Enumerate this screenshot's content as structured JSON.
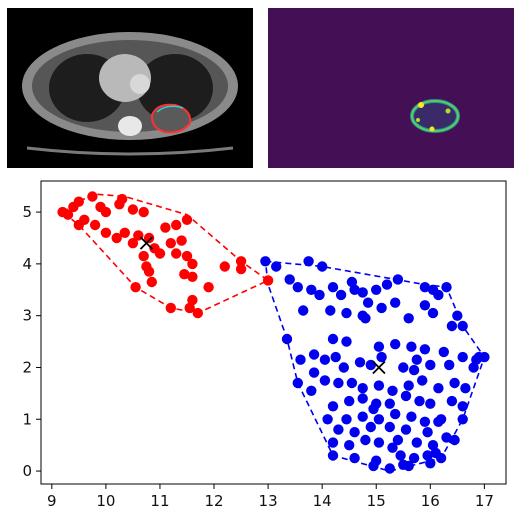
{
  "figure": {
    "panels": [
      {
        "name": "ct-scan-image",
        "kind": "grayscale CT slice with red and cyan tumor outlines"
      },
      {
        "name": "segmentation-heatmap",
        "kind": "viridis probability map with a bright ring"
      }
    ],
    "colors": {
      "red_cluster": "#ff0000",
      "blue_cluster": "#0000ee",
      "centroid": "#000000",
      "heatmap_background": "#440f55",
      "ct_red_outline": "#ff3030",
      "ct_cyan_outline": "#30d0d0"
    }
  },
  "chart_data": {
    "type": "scatter",
    "title": "",
    "xlabel": "",
    "ylabel": "",
    "xlim": [
      8.8,
      17.4
    ],
    "ylim": [
      -0.25,
      5.6
    ],
    "xticks": [
      9,
      10,
      11,
      12,
      13,
      14,
      15,
      16,
      17
    ],
    "yticks": [
      0,
      1,
      2,
      3,
      4,
      5
    ],
    "grid": false,
    "series": [
      {
        "color": "#ff0000",
        "points": [
          [
            9.2,
            5.0
          ],
          [
            9.3,
            4.95
          ],
          [
            9.4,
            5.1
          ],
          [
            9.5,
            5.2
          ],
          [
            9.6,
            4.85
          ],
          [
            9.75,
            5.3
          ],
          [
            9.9,
            5.1
          ],
          [
            10.0,
            5.0
          ],
          [
            10.25,
            5.15
          ],
          [
            10.3,
            5.25
          ],
          [
            10.5,
            5.05
          ],
          [
            10.7,
            5.0
          ],
          [
            9.5,
            4.75
          ],
          [
            9.8,
            4.75
          ],
          [
            10.0,
            4.6
          ],
          [
            10.2,
            4.5
          ],
          [
            10.35,
            4.6
          ],
          [
            10.6,
            4.55
          ],
          [
            10.8,
            4.5
          ],
          [
            11.1,
            4.7
          ],
          [
            11.3,
            4.75
          ],
          [
            11.5,
            4.85
          ],
          [
            10.5,
            4.4
          ],
          [
            10.9,
            4.3
          ],
          [
            11.2,
            4.4
          ],
          [
            11.4,
            4.45
          ],
          [
            10.7,
            4.15
          ],
          [
            11.0,
            4.2
          ],
          [
            11.3,
            4.2
          ],
          [
            11.5,
            4.15
          ],
          [
            11.6,
            4.0
          ],
          [
            10.8,
            3.85
          ],
          [
            11.45,
            3.8
          ],
          [
            11.6,
            3.75
          ],
          [
            12.2,
            3.95
          ],
          [
            12.5,
            4.05
          ],
          [
            12.5,
            3.9
          ],
          [
            10.85,
            3.65
          ],
          [
            10.55,
            3.55
          ],
          [
            11.9,
            3.55
          ],
          [
            13.0,
            3.68
          ],
          [
            11.6,
            3.3
          ],
          [
            11.55,
            3.15
          ],
          [
            11.2,
            3.15
          ],
          [
            11.7,
            3.05
          ],
          [
            10.75,
            3.95
          ]
        ],
        "hull": [
          [
            9.2,
            5.0
          ],
          [
            9.75,
            5.35
          ],
          [
            10.35,
            5.3
          ],
          [
            11.5,
            4.95
          ],
          [
            12.5,
            4.05
          ],
          [
            13.0,
            3.68
          ],
          [
            11.7,
            3.05
          ],
          [
            11.2,
            3.15
          ],
          [
            10.55,
            3.55
          ],
          [
            9.5,
            4.75
          ]
        ],
        "centroid": [
          10.75,
          4.4
        ]
      },
      {
        "color": "#0000ee",
        "points": [
          [
            12.95,
            4.05
          ],
          [
            13.15,
            3.95
          ],
          [
            13.4,
            3.7
          ],
          [
            13.55,
            3.55
          ],
          [
            13.8,
            3.5
          ],
          [
            13.95,
            3.4
          ],
          [
            14.2,
            3.55
          ],
          [
            14.35,
            3.4
          ],
          [
            14.6,
            3.5
          ],
          [
            14.75,
            3.45
          ],
          [
            15.0,
            3.5
          ],
          [
            15.2,
            3.6
          ],
          [
            15.4,
            3.7
          ],
          [
            15.9,
            3.55
          ],
          [
            16.05,
            3.5
          ],
          [
            16.15,
            3.4
          ],
          [
            16.3,
            3.55
          ],
          [
            13.75,
            4.05
          ],
          [
            14.0,
            3.95
          ],
          [
            14.55,
            3.65
          ],
          [
            14.15,
            3.1
          ],
          [
            14.45,
            3.05
          ],
          [
            14.75,
            3.0
          ],
          [
            14.85,
            3.25
          ],
          [
            15.1,
            3.15
          ],
          [
            15.35,
            3.25
          ],
          [
            15.9,
            3.2
          ],
          [
            16.05,
            3.05
          ],
          [
            16.5,
            3.0
          ],
          [
            13.65,
            3.1
          ],
          [
            15.6,
            2.95
          ],
          [
            14.8,
            2.95
          ],
          [
            16.4,
            2.8
          ],
          [
            16.6,
            2.8
          ],
          [
            13.35,
            2.55
          ],
          [
            14.2,
            2.55
          ],
          [
            14.45,
            2.5
          ],
          [
            15.05,
            2.4
          ],
          [
            15.35,
            2.45
          ],
          [
            15.65,
            2.4
          ],
          [
            15.9,
            2.35
          ],
          [
            16.25,
            2.3
          ],
          [
            16.6,
            2.2
          ],
          [
            16.85,
            2.15
          ],
          [
            16.9,
            2.2
          ],
          [
            17.0,
            2.2
          ],
          [
            16.8,
            2.0
          ],
          [
            13.85,
            2.25
          ],
          [
            14.05,
            2.15
          ],
          [
            14.25,
            2.2
          ],
          [
            14.4,
            2.0
          ],
          [
            14.7,
            2.1
          ],
          [
            14.9,
            2.05
          ],
          [
            15.1,
            2.2
          ],
          [
            15.5,
            2.0
          ],
          [
            15.75,
            2.15
          ],
          [
            16.0,
            2.05
          ],
          [
            16.35,
            2.05
          ],
          [
            13.6,
            2.15
          ],
          [
            13.85,
            1.9
          ],
          [
            14.05,
            1.75
          ],
          [
            14.3,
            1.7
          ],
          [
            14.55,
            1.7
          ],
          [
            14.75,
            1.6
          ],
          [
            15.05,
            1.65
          ],
          [
            15.3,
            1.55
          ],
          [
            15.6,
            1.65
          ],
          [
            15.85,
            1.75
          ],
          [
            16.15,
            1.6
          ],
          [
            16.45,
            1.7
          ],
          [
            16.65,
            1.6
          ],
          [
            13.55,
            1.7
          ],
          [
            13.8,
            1.55
          ],
          [
            14.2,
            1.25
          ],
          [
            14.5,
            1.35
          ],
          [
            14.75,
            1.4
          ],
          [
            15.0,
            1.3
          ],
          [
            15.25,
            1.3
          ],
          [
            15.55,
            1.45
          ],
          [
            15.8,
            1.35
          ],
          [
            16.0,
            1.3
          ],
          [
            16.4,
            1.35
          ],
          [
            16.6,
            1.25
          ],
          [
            16.2,
            1.0
          ],
          [
            14.1,
            1.0
          ],
          [
            14.45,
            1.0
          ],
          [
            14.75,
            1.05
          ],
          [
            15.05,
            1.0
          ],
          [
            15.35,
            1.1
          ],
          [
            15.65,
            1.05
          ],
          [
            15.9,
            0.95
          ],
          [
            16.15,
            0.95
          ],
          [
            14.3,
            0.8
          ],
          [
            14.6,
            0.75
          ],
          [
            14.9,
            0.85
          ],
          [
            15.25,
            0.85
          ],
          [
            15.55,
            0.8
          ],
          [
            15.95,
            0.75
          ],
          [
            16.3,
            0.65
          ],
          [
            14.2,
            0.55
          ],
          [
            14.5,
            0.5
          ],
          [
            14.8,
            0.6
          ],
          [
            15.05,
            0.55
          ],
          [
            15.4,
            0.6
          ],
          [
            15.75,
            0.55
          ],
          [
            16.05,
            0.5
          ],
          [
            16.45,
            0.6
          ],
          [
            14.2,
            0.3
          ],
          [
            14.6,
            0.25
          ],
          [
            15.0,
            0.2
          ],
          [
            15.45,
            0.3
          ],
          [
            15.7,
            0.25
          ],
          [
            15.95,
            0.3
          ],
          [
            16.2,
            0.25
          ],
          [
            16.0,
            0.15
          ],
          [
            15.6,
            0.1
          ],
          [
            14.95,
            0.1
          ],
          [
            15.25,
            0.05
          ],
          [
            15.5,
            0.12
          ],
          [
            16.1,
            0.35
          ],
          [
            16.6,
            1.0
          ],
          [
            15.3,
            0.45
          ],
          [
            15.7,
            1.95
          ],
          [
            14.95,
            1.2
          ]
        ],
        "hull": [
          [
            12.95,
            4.05
          ],
          [
            14.0,
            3.95
          ],
          [
            15.9,
            3.6
          ],
          [
            16.3,
            3.55
          ],
          [
            16.6,
            2.8
          ],
          [
            17.0,
            2.2
          ],
          [
            16.6,
            1.0
          ],
          [
            16.2,
            0.25
          ],
          [
            15.25,
            0.0
          ],
          [
            14.2,
            0.3
          ],
          [
            13.55,
            1.7
          ],
          [
            13.35,
            2.55
          ],
          [
            13.0,
            3.6
          ]
        ],
        "centroid": [
          15.05,
          2.0
        ]
      }
    ]
  }
}
